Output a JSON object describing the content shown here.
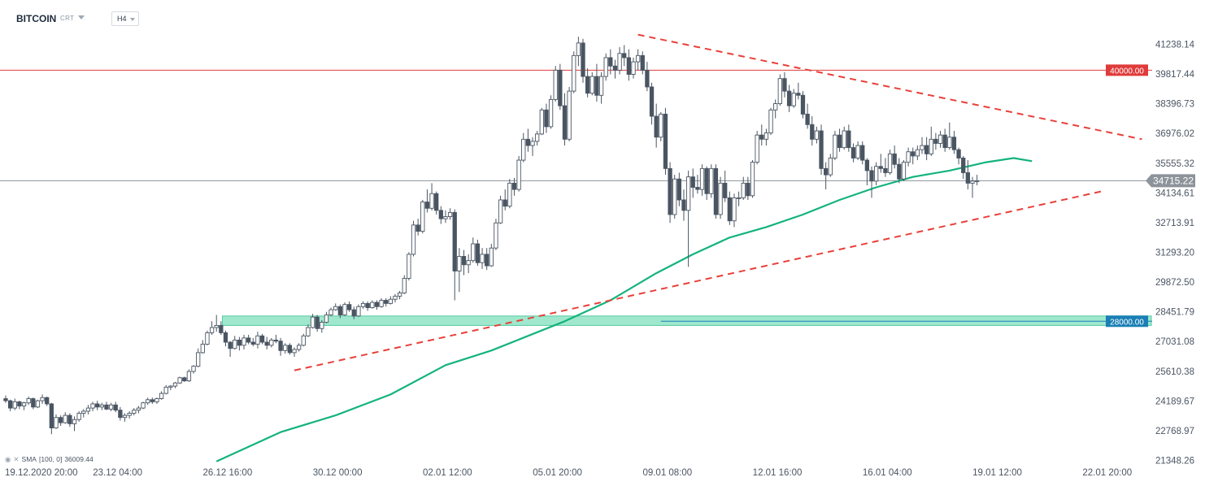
{
  "header": {
    "symbol": "BITCOIN",
    "chart_type": "CRT",
    "timeframe": "H4"
  },
  "indicator_legend": {
    "name": "SMA",
    "params": "[100, 0]",
    "value": "36009.44"
  },
  "colors": {
    "bull_candle": "#ffffff",
    "bear_candle": "#4a5562",
    "sma_line": "#14b37d",
    "trendline": "#e8403a",
    "resistance_line": "#e03b3b",
    "support_zone": "#7fe0bd",
    "support_line": "#1a7fb5",
    "current_price_line": "#8d939a"
  },
  "chart_data": {
    "type": "candlestick",
    "title": "",
    "symbol": "BITCOIN",
    "timeframe": "H4",
    "ylim": [
      21200,
      42000
    ],
    "grid": false,
    "y_ticks": [
      "41238.14",
      "39817.44",
      "38396.73",
      "36976.02",
      "35555.32",
      "34134.61",
      "32713.91",
      "31293.20",
      "29872.50",
      "28451.79",
      "27031.08",
      "25610.38",
      "24189.67",
      "22768.97",
      "21348.26"
    ],
    "x_ticks": [
      "19.12.2020  20:00",
      "23.12  04:00",
      "26.12  16:00",
      "30.12  00:00",
      "02.01  12:00",
      "05.01  20:00",
      "09.01  08:00",
      "12.01  16:00",
      "16.01  04:00",
      "19.01  12:00",
      "22.01  20:00"
    ],
    "x_tick_candle_index": [
      0,
      24,
      48,
      72,
      96,
      120,
      144,
      168,
      192,
      216,
      240
    ],
    "price_levels": [
      {
        "label": "40000.00",
        "value": 40000,
        "kind": "resistance"
      },
      {
        "label": "28000.00",
        "value": 28000,
        "kind": "support"
      },
      {
        "label": "34715.22",
        "value": 34715.22,
        "kind": "current"
      }
    ],
    "support_zone": {
      "from": 27800,
      "to": 28250,
      "start_index": 48
    },
    "trendlines": [
      {
        "name": "upper",
        "from": {
          "index": 138,
          "value": 41700
        },
        "to": {
          "index": 248,
          "value": 36700
        }
      },
      {
        "name": "lower",
        "from": {
          "index": 63,
          "value": 25650
        },
        "to": {
          "index": 240,
          "value": 34250
        }
      }
    ],
    "sma": {
      "name": "SMA [100, 0]",
      "points": [
        [
          46,
          21300
        ],
        [
          60,
          22700
        ],
        [
          72,
          23500
        ],
        [
          84,
          24500
        ],
        [
          96,
          25900
        ],
        [
          106,
          26600
        ],
        [
          114,
          27300
        ],
        [
          122,
          28000
        ],
        [
          132,
          29000
        ],
        [
          142,
          30300
        ],
        [
          150,
          31200
        ],
        [
          158,
          32000
        ],
        [
          166,
          32500
        ],
        [
          174,
          33100
        ],
        [
          182,
          33800
        ],
        [
          190,
          34400
        ],
        [
          198,
          34900
        ],
        [
          206,
          35200
        ],
        [
          214,
          35600
        ],
        [
          220,
          35800
        ],
        [
          224,
          35650
        ]
      ]
    },
    "candles": [
      [
        24300,
        24450,
        24100,
        24200
      ],
      [
        24200,
        24250,
        23700,
        23850
      ],
      [
        23850,
        24300,
        23750,
        24150
      ],
      [
        24150,
        24200,
        23800,
        23950
      ],
      [
        23950,
        24150,
        23750,
        24100
      ],
      [
        24100,
        24400,
        24000,
        24300
      ],
      [
        24300,
        24350,
        23800,
        23900
      ],
      [
        23900,
        24250,
        23850,
        24200
      ],
      [
        24200,
        24500,
        24050,
        24350
      ],
      [
        24350,
        24400,
        23950,
        24050
      ],
      [
        24050,
        24100,
        22600,
        22900
      ],
      [
        22900,
        23550,
        22850,
        23400
      ],
      [
        23400,
        23500,
        23000,
        23150
      ],
      [
        23150,
        23650,
        23100,
        23500
      ],
      [
        23500,
        23600,
        22950,
        23100
      ],
      [
        23100,
        23450,
        22750,
        23300
      ],
      [
        23300,
        23700,
        23200,
        23600
      ],
      [
        23600,
        23800,
        23400,
        23700
      ],
      [
        23700,
        24000,
        23550,
        23850
      ],
      [
        23850,
        24150,
        23700,
        24050
      ],
      [
        24050,
        24200,
        23750,
        23900
      ],
      [
        23900,
        24100,
        23750,
        24000
      ],
      [
        24000,
        24150,
        23750,
        23800
      ],
      [
        23800,
        24100,
        23700,
        24000
      ],
      [
        24000,
        24150,
        23650,
        23750
      ],
      [
        23750,
        23900,
        23250,
        23400
      ],
      [
        23400,
        23600,
        23200,
        23500
      ],
      [
        23500,
        23700,
        23350,
        23600
      ],
      [
        23600,
        23850,
        23500,
        23750
      ],
      [
        23750,
        23950,
        23600,
        23850
      ],
      [
        23850,
        24150,
        23800,
        24100
      ],
      [
        24100,
        24350,
        24000,
        24250
      ],
      [
        24250,
        24350,
        24050,
        24150
      ],
      [
        24150,
        24350,
        24050,
        24300
      ],
      [
        24300,
        24650,
        24250,
        24550
      ],
      [
        24550,
        24950,
        24500,
        24850
      ],
      [
        24850,
        24950,
        24700,
        24900
      ],
      [
        24900,
        25100,
        24800,
        25050
      ],
      [
        25050,
        25350,
        25000,
        25300
      ],
      [
        25300,
        25350,
        25100,
        25150
      ],
      [
        25150,
        25700,
        25100,
        25600
      ],
      [
        25600,
        25900,
        25500,
        25850
      ],
      [
        25850,
        26700,
        25800,
        26500
      ],
      [
        26500,
        27100,
        26450,
        26900
      ],
      [
        26900,
        27550,
        26850,
        27450
      ],
      [
        27450,
        28000,
        27350,
        27700
      ],
      [
        27700,
        28300,
        27500,
        27800
      ],
      [
        27800,
        28000,
        27350,
        27450
      ],
      [
        27450,
        27550,
        26800,
        27000
      ],
      [
        27000,
        27050,
        26300,
        26700
      ],
      [
        26700,
        27300,
        26650,
        27100
      ],
      [
        27100,
        27250,
        26600,
        26850
      ],
      [
        26850,
        27350,
        26650,
        27200
      ],
      [
        27200,
        27350,
        26900,
        27000
      ],
      [
        27000,
        27200,
        26800,
        26900
      ],
      [
        26900,
        27500,
        26700,
        27300
      ],
      [
        27300,
        27400,
        26900,
        27000
      ],
      [
        27000,
        27250,
        26650,
        26850
      ],
      [
        26850,
        27200,
        26750,
        27100
      ],
      [
        27100,
        27350,
        26950,
        27050
      ],
      [
        27050,
        27200,
        26350,
        26600
      ],
      [
        26600,
        26950,
        26450,
        26850
      ],
      [
        26850,
        26950,
        26400,
        26500
      ],
      [
        26500,
        26750,
        26300,
        26650
      ],
      [
        26650,
        26950,
        26550,
        26850
      ],
      [
        26850,
        27400,
        26800,
        27300
      ],
      [
        27300,
        27850,
        27250,
        27700
      ],
      [
        27700,
        28350,
        27650,
        28200
      ],
      [
        28200,
        28300,
        27500,
        27650
      ],
      [
        27650,
        28050,
        27450,
        27950
      ],
      [
        27950,
        28450,
        27900,
        28300
      ],
      [
        28300,
        28650,
        28250,
        28550
      ],
      [
        28550,
        28850,
        28500,
        28700
      ],
      [
        28700,
        28800,
        28150,
        28300
      ],
      [
        28300,
        28900,
        28250,
        28800
      ],
      [
        28800,
        28950,
        28450,
        28550
      ],
      [
        28550,
        28700,
        28100,
        28250
      ],
      [
        28250,
        28800,
        28200,
        28700
      ],
      [
        28700,
        28950,
        28600,
        28850
      ],
      [
        28850,
        28950,
        28500,
        28650
      ],
      [
        28650,
        29000,
        28600,
        28900
      ],
      [
        28900,
        29000,
        28550,
        28700
      ],
      [
        28700,
        29100,
        28650,
        29000
      ],
      [
        29000,
        29100,
        28700,
        28850
      ],
      [
        28850,
        29200,
        28800,
        29050
      ],
      [
        29050,
        29300,
        28900,
        29200
      ],
      [
        29200,
        29450,
        29050,
        29350
      ],
      [
        29350,
        30200,
        29300,
        30050
      ],
      [
        30050,
        31300,
        29950,
        31200
      ],
      [
        31200,
        32800,
        31100,
        32600
      ],
      [
        32600,
        32900,
        32100,
        32300
      ],
      [
        32300,
        33800,
        32200,
        33700
      ],
      [
        33700,
        34300,
        33200,
        33400
      ],
      [
        33400,
        34600,
        33300,
        34100
      ],
      [
        34100,
        34200,
        33100,
        33300
      ],
      [
        33300,
        33500,
        32650,
        32900
      ],
      [
        32900,
        33300,
        32700,
        33000
      ],
      [
        33000,
        33400,
        32850,
        33200
      ],
      [
        33200,
        33350,
        29000,
        30400
      ],
      [
        30400,
        31500,
        29400,
        31100
      ],
      [
        31100,
        31400,
        30200,
        30700
      ],
      [
        30700,
        31200,
        30300,
        30900
      ],
      [
        30900,
        32000,
        30800,
        31700
      ],
      [
        31700,
        31900,
        30650,
        30800
      ],
      [
        30800,
        31500,
        30500,
        31200
      ],
      [
        31200,
        31500,
        30450,
        30650
      ],
      [
        30650,
        31700,
        30600,
        31500
      ],
      [
        31500,
        32900,
        31400,
        32700
      ],
      [
        32700,
        34000,
        32650,
        33800
      ],
      [
        33800,
        34300,
        33300,
        33500
      ],
      [
        33500,
        34800,
        33400,
        34600
      ],
      [
        34600,
        34850,
        34000,
        34300
      ],
      [
        34300,
        35900,
        34200,
        35700
      ],
      [
        35700,
        37000,
        35600,
        36700
      ],
      [
        36700,
        37200,
        36100,
        36400
      ],
      [
        36400,
        36800,
        35900,
        36600
      ],
      [
        36600,
        37100,
        36400,
        36950
      ],
      [
        36950,
        38200,
        36900,
        38100
      ],
      [
        38100,
        38400,
        37000,
        37300
      ],
      [
        37300,
        38800,
        37200,
        38600
      ],
      [
        38600,
        40200,
        38500,
        40000
      ],
      [
        40000,
        40300,
        38100,
        38300
      ],
      [
        38300,
        38900,
        36400,
        36700
      ],
      [
        36700,
        39200,
        36600,
        39000
      ],
      [
        39000,
        40900,
        38900,
        40700
      ],
      [
        40700,
        41600,
        40200,
        41300
      ],
      [
        41300,
        41500,
        39400,
        39700
      ],
      [
        39700,
        40100,
        38700,
        38900
      ],
      [
        38900,
        39900,
        38800,
        39700
      ],
      [
        39700,
        40300,
        38500,
        38800
      ],
      [
        38800,
        39900,
        38400,
        39700
      ],
      [
        39700,
        40800,
        39500,
        40600
      ],
      [
        40600,
        41000,
        39800,
        40200
      ],
      [
        40200,
        40500,
        39600,
        40000
      ],
      [
        40000,
        41100,
        39800,
        40800
      ],
      [
        40800,
        41200,
        40200,
        40600
      ],
      [
        40600,
        41000,
        39500,
        39800
      ],
      [
        39800,
        40600,
        39600,
        40400
      ],
      [
        40400,
        41000,
        40000,
        40700
      ],
      [
        40700,
        40900,
        39800,
        40000
      ],
      [
        40000,
        40400,
        39000,
        39200
      ],
      [
        39200,
        39400,
        37400,
        37800
      ],
      [
        37800,
        38400,
        36300,
        36800
      ],
      [
        36800,
        38000,
        36600,
        37900
      ],
      [
        37900,
        38200,
        35000,
        35300
      ],
      [
        35300,
        35600,
        32700,
        33100
      ],
      [
        33100,
        35000,
        32900,
        34800
      ],
      [
        34800,
        35100,
        33500,
        33800
      ],
      [
        33800,
        34300,
        32800,
        33300
      ],
      [
        33300,
        35200,
        30600,
        34900
      ],
      [
        34900,
        35300,
        33900,
        34400
      ],
      [
        34400,
        35000,
        34100,
        34300
      ],
      [
        34300,
        35500,
        34000,
        35300
      ],
      [
        35300,
        35400,
        33800,
        34100
      ],
      [
        34100,
        35500,
        33900,
        35300
      ],
      [
        35300,
        35500,
        32900,
        33100
      ],
      [
        33100,
        34900,
        32900,
        34600
      ],
      [
        34600,
        35200,
        33700,
        33900
      ],
      [
        33900,
        34200,
        32600,
        32800
      ],
      [
        32800,
        34100,
        32500,
        33900
      ],
      [
        33900,
        34200,
        33500,
        33900
      ],
      [
        33900,
        34900,
        33800,
        34600
      ],
      [
        34600,
        34900,
        33800,
        34000
      ],
      [
        34000,
        35700,
        33900,
        35600
      ],
      [
        35600,
        37100,
        35500,
        36900
      ],
      [
        36900,
        37400,
        36400,
        36700
      ],
      [
        36700,
        37200,
        36400,
        37000
      ],
      [
        37000,
        38200,
        36900,
        38100
      ],
      [
        38100,
        38600,
        37700,
        38400
      ],
      [
        38400,
        39800,
        38300,
        39600
      ],
      [
        39600,
        39900,
        38700,
        39000
      ],
      [
        39000,
        39300,
        38000,
        38300
      ],
      [
        38300,
        39100,
        38200,
        38900
      ],
      [
        38900,
        39400,
        38600,
        38800
      ],
      [
        38800,
        39000,
        37700,
        37900
      ],
      [
        37900,
        38400,
        37200,
        37400
      ],
      [
        37400,
        37800,
        36400,
        36700
      ],
      [
        36700,
        37300,
        36500,
        37100
      ],
      [
        37100,
        37400,
        35000,
        35300
      ],
      [
        35300,
        35600,
        34300,
        35000
      ],
      [
        35000,
        36000,
        34900,
        35800
      ],
      [
        35800,
        37100,
        35700,
        36900
      ],
      [
        36900,
        37200,
        36100,
        36300
      ],
      [
        36300,
        37300,
        36200,
        37100
      ],
      [
        37100,
        37400,
        36100,
        36300
      ],
      [
        36300,
        36500,
        35600,
        35800
      ],
      [
        35800,
        36600,
        35700,
        36400
      ],
      [
        36400,
        36600,
        35500,
        35700
      ],
      [
        35700,
        35800,
        34500,
        35200
      ],
      [
        35200,
        35400,
        33900,
        34700
      ],
      [
        34700,
        35600,
        34500,
        35400
      ],
      [
        35400,
        36000,
        35100,
        35300
      ],
      [
        35300,
        35800,
        34900,
        35100
      ],
      [
        35100,
        36200,
        35000,
        36000
      ],
      [
        36000,
        36400,
        35300,
        35500
      ],
      [
        35500,
        35800,
        34600,
        34800
      ],
      [
        34800,
        35700,
        34700,
        35600
      ],
      [
        35600,
        36300,
        35400,
        36100
      ],
      [
        36100,
        36300,
        35500,
        35900
      ],
      [
        35900,
        36400,
        35700,
        36200
      ],
      [
        36200,
        36800,
        36000,
        36400
      ],
      [
        36400,
        36800,
        35700,
        36000
      ],
      [
        36000,
        37300,
        35900,
        36700
      ],
      [
        36700,
        37000,
        36200,
        36500
      ],
      [
        36500,
        37100,
        36300,
        36900
      ],
      [
        36900,
        37200,
        36100,
        36300
      ],
      [
        36300,
        37500,
        36200,
        36800
      ],
      [
        36800,
        37100,
        36000,
        36200
      ],
      [
        36200,
        36300,
        35500,
        35800
      ],
      [
        35800,
        35900,
        34800,
        35100
      ],
      [
        35100,
        35700,
        34300,
        34600
      ],
      [
        34600,
        34900,
        33900,
        34700
      ],
      [
        34700,
        35000,
        34500,
        34715
      ]
    ]
  }
}
